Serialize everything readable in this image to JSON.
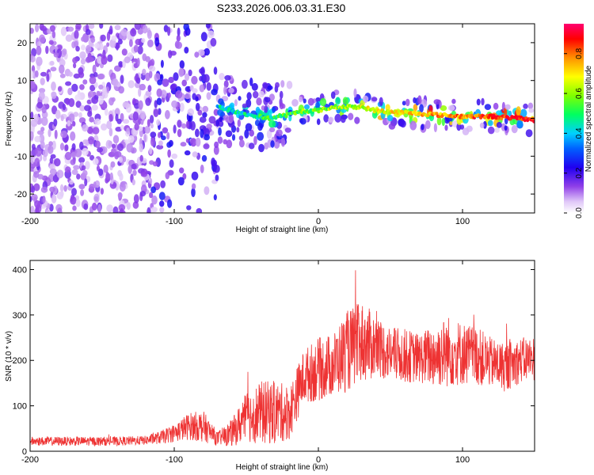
{
  "title": "S233.2026.006.03.31.E30",
  "chart_data": [
    {
      "type": "heatmap",
      "name": "spectrogram",
      "xlabel": "Height of straight line (km)",
      "ylabel": "Frequency (Hz)",
      "xlim": [
        -200,
        150
      ],
      "ylim": [
        -25,
        25
      ],
      "xticks": [
        -200,
        -100,
        0,
        100
      ],
      "yticks": [
        20,
        10,
        0,
        -10,
        -20
      ],
      "colorbar": {
        "label": "Normalized spectral amplitude",
        "range": [
          0.0,
          0.95
        ],
        "ticks": [
          0.0,
          0.2,
          0.4,
          0.6,
          0.8
        ],
        "colors": [
          "#e8d8f8",
          "#c090f0",
          "#8030e0",
          "#3000f0",
          "#0040ff",
          "#00c0ff",
          "#00ff80",
          "#80ff00",
          "#ffff00",
          "#ff8000",
          "#ff0000",
          "#ff0080"
        ]
      },
      "ridge": {
        "description_points_x": [
          -110,
          -90,
          -70,
          -50,
          -35,
          -20,
          -10,
          0,
          10,
          20,
          30,
          40,
          60,
          80,
          100,
          120,
          140,
          150
        ],
        "description_points_y": [
          2,
          2,
          3,
          1,
          0,
          1,
          2,
          2,
          3,
          3,
          3,
          2,
          1.5,
          1,
          0.5,
          0.5,
          0,
          -0.5
        ]
      }
    },
    {
      "type": "line",
      "name": "snr",
      "xlabel": "Height of straight line (km)",
      "ylabel": "SNR (10 * v/v)",
      "xlim": [
        -200,
        150
      ],
      "ylim": [
        0,
        420
      ],
      "xticks": [
        -200,
        -100,
        0,
        100
      ],
      "yticks": [
        0,
        100,
        200,
        300,
        400
      ],
      "color": "#ee3333",
      "series": [
        {
          "name": "SNR",
          "x": [
            -200,
            -180,
            -160,
            -140,
            -120,
            -110,
            -100,
            -90,
            -80,
            -70,
            -60,
            -50,
            -40,
            -30,
            -20,
            -10,
            0,
            10,
            20,
            30,
            40,
            50,
            60,
            70,
            80,
            90,
            100,
            110,
            120,
            130,
            140,
            150
          ],
          "mean": [
            22,
            22,
            22,
            22,
            24,
            30,
            40,
            55,
            55,
            28,
            40,
            75,
            85,
            85,
            85,
            165,
            180,
            190,
            220,
            240,
            230,
            215,
            210,
            205,
            210,
            220,
            215,
            210,
            195,
            185,
            200,
            205
          ],
          "spread": [
            10,
            10,
            10,
            10,
            10,
            14,
            20,
            30,
            35,
            15,
            30,
            55,
            70,
            70,
            60,
            60,
            70,
            70,
            90,
            90,
            70,
            60,
            60,
            55,
            70,
            80,
            70,
            65,
            55,
            55,
            50,
            50
          ]
        }
      ]
    }
  ]
}
